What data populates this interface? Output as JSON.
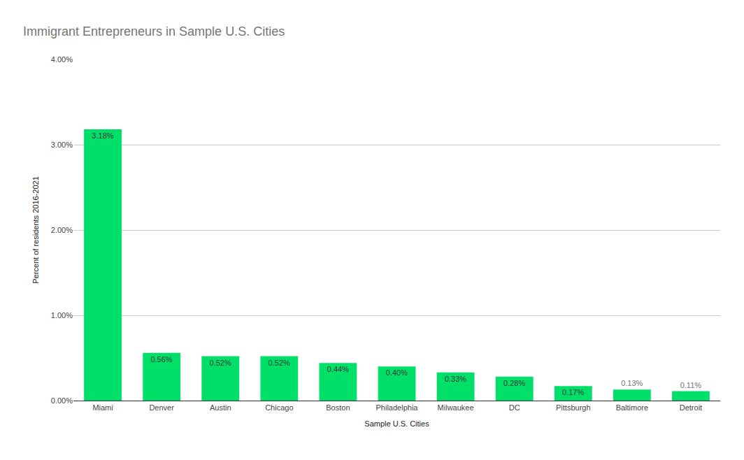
{
  "chart_data": {
    "type": "bar",
    "title": "Immigrant Entrepreneurs in Sample U.S. Cities",
    "x_label": "Sample U.S. Cities",
    "y_label": "Percent of residents 2016-2021",
    "categories": [
      "Miami",
      "Denver",
      "Austin",
      "Chicago",
      "Boston",
      "Philadelphia",
      "Milwaukee",
      "DC",
      "Pittsburgh",
      "Baltimore",
      "Detroit"
    ],
    "values": [
      3.18,
      0.56,
      0.52,
      0.52,
      0.44,
      0.4,
      0.33,
      0.28,
      0.17,
      0.13,
      0.11
    ],
    "value_labels": [
      "3.18%",
      "0.56%",
      "0.52%",
      "0.52%",
      "0.44%",
      "0.40%",
      "0.33%",
      "0.28%",
      "0.17%",
      "0.13%",
      "0.11%"
    ],
    "color": "#00e068",
    "ylim": [
      0,
      4
    ],
    "yticks": [
      {
        "value": 0,
        "label": "0.00%"
      },
      {
        "value": 1,
        "label": "1.00%"
      },
      {
        "value": 2,
        "label": "2.00%"
      },
      {
        "value": 3,
        "label": "3.00%"
      },
      {
        "value": 4,
        "label": "4.00%"
      }
    ],
    "grid": true,
    "data_labels": true
  }
}
